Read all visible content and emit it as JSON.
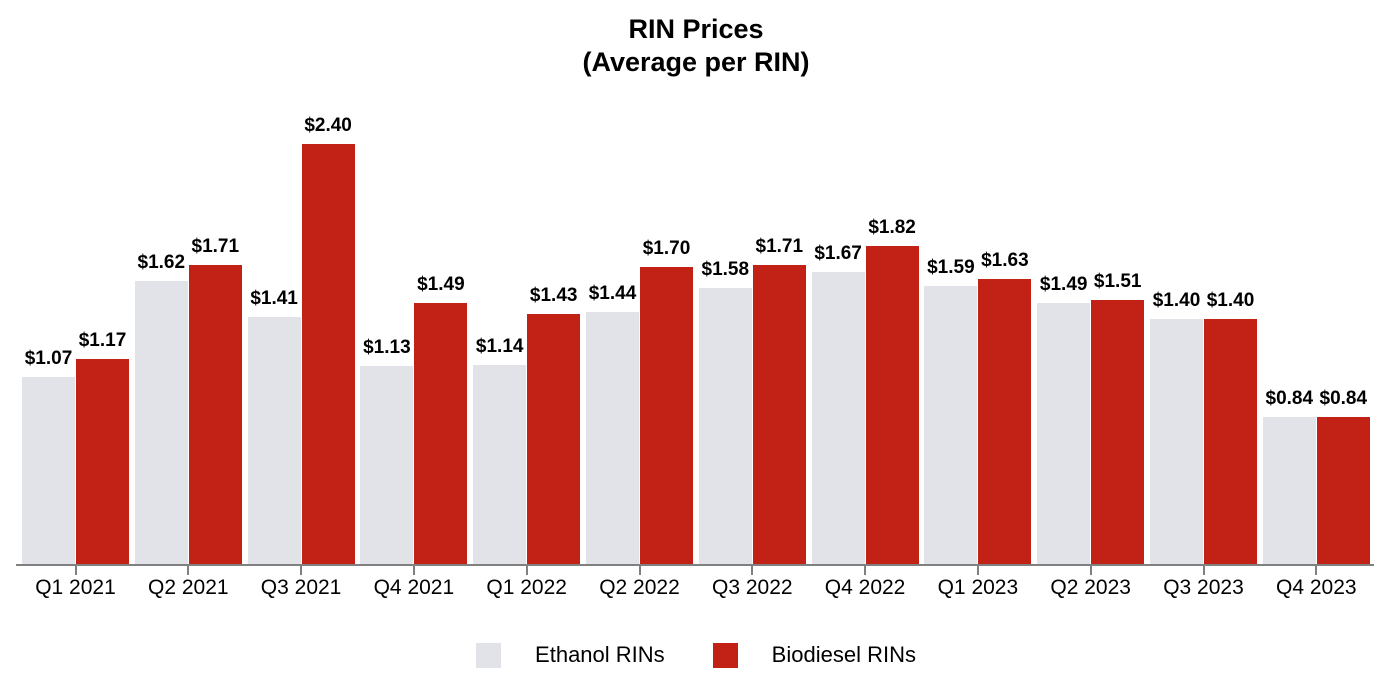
{
  "title": {
    "line1": "RIN Prices",
    "line2": "(Average per RIN)"
  },
  "legend": {
    "items": [
      {
        "label": "Ethanol RINs",
        "color": "#E2E2E9"
      },
      {
        "label": "Biodiesel RINs",
        "color": "#C22115"
      }
    ]
  },
  "colors": {
    "background": "#FFFFFF",
    "axis_line": "#808080",
    "tick": "#808080",
    "text": "#000000",
    "ethanol_bar": "#E2E2E9",
    "biodiesel_bar": "#C22115"
  },
  "chart_data": {
    "type": "bar",
    "title": "RIN Prices (Average per RIN)",
    "categories": [
      "Q1 2021",
      "Q2 2021",
      "Q3 2021",
      "Q4 2021",
      "Q1 2022",
      "Q2 2022",
      "Q3 2022",
      "Q4 2022",
      "Q1 2023",
      "Q2 2023",
      "Q3 2023",
      "Q4 2023"
    ],
    "series": [
      {
        "name": "Ethanol RINs",
        "color": "#E2E2E9",
        "values": [
          1.07,
          1.62,
          1.41,
          1.13,
          1.14,
          1.44,
          1.58,
          1.67,
          1.59,
          1.49,
          1.4,
          0.84
        ],
        "data_labels": [
          "$1.07",
          "$1.62",
          "$1.41",
          "$1.13",
          "$1.14",
          "$1.44",
          "$1.58",
          "$1.67",
          "$1.59",
          "$1.49",
          "$1.40",
          "$0.84"
        ]
      },
      {
        "name": "Biodiesel RINs",
        "color": "#C22115",
        "values": [
          1.17,
          1.71,
          2.4,
          1.49,
          1.43,
          1.7,
          1.71,
          1.82,
          1.63,
          1.51,
          1.4,
          0.84
        ],
        "data_labels": [
          "$1.17",
          "$1.71",
          "$2.40",
          "$1.49",
          "$1.43",
          "$1.70",
          "$1.71",
          "$1.82",
          "$1.63",
          "$1.51",
          "$1.40",
          "$0.84"
        ]
      }
    ],
    "value_prefix": "$",
    "value_decimals": 2,
    "xlabel": "",
    "ylabel": "",
    "ylim": [
      0,
      2.6
    ],
    "grid": false,
    "y_axis_visible": false,
    "legend_position": "bottom"
  }
}
